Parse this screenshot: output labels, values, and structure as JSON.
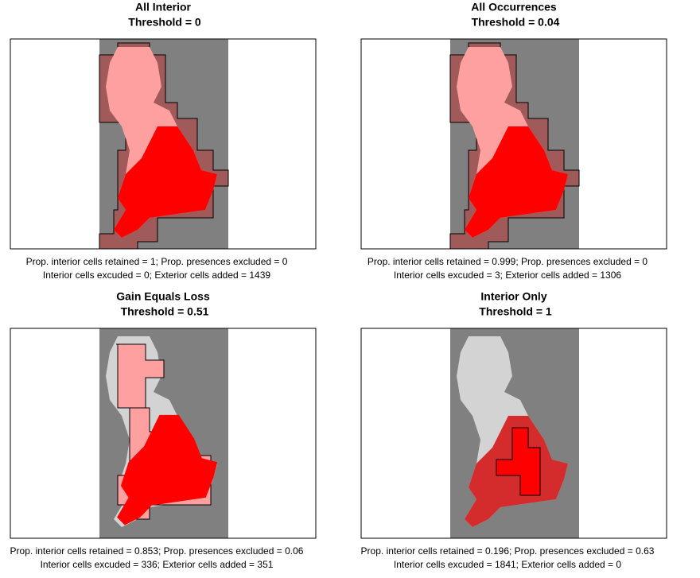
{
  "panels": [
    {
      "title": "All Interior",
      "threshold": "Threshold =  0",
      "stats": [
        "Prop. interior cells retained = 1;   Prop. presences excluded = 0",
        "Interior cells excuded = 0;   Exterior cells added = 1439"
      ]
    },
    {
      "title": "All Occurrences",
      "threshold": "Threshold =  0.04",
      "stats": [
        "Prop. interior cells retained = 0.999;   Prop. presences excluded = 0",
        "Interior cells excuded = 3;   Exterior cells added = 1306"
      ]
    },
    {
      "title": "Gain Equals Loss",
      "threshold": "Threshold =  0.51",
      "stats": [
        "Prop. interior cells retained = 0.853;   Prop. presences excluded = 0.06",
        "Interior cells excuded = 336;   Exterior cells added = 351"
      ]
    },
    {
      "title": "Interior Only",
      "threshold": "Threshold =  1",
      "stats": [
        "Prop. interior cells retained = 0.196;   Prop. presences excluded = 0.63",
        "Interior cells excuded = 1841;   Exterior cells added = 0"
      ]
    }
  ]
}
